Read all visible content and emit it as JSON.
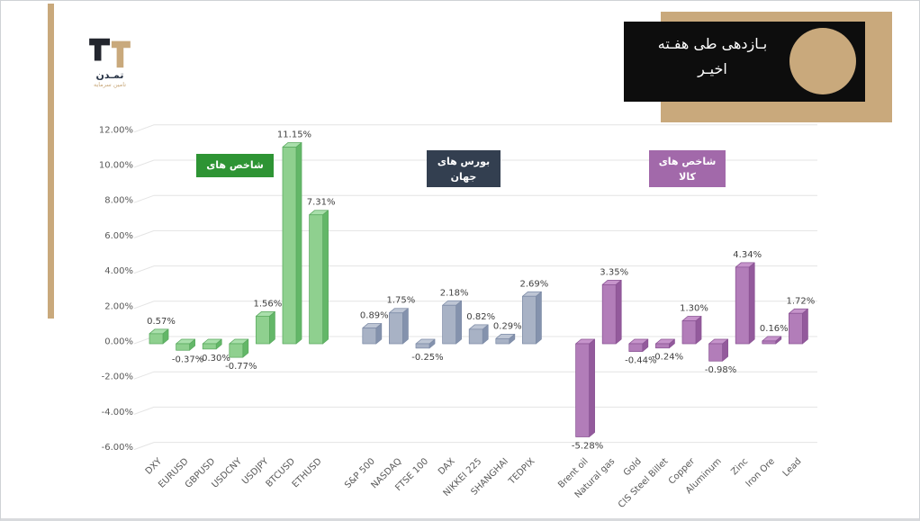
{
  "brand": {
    "name": "تمـدن",
    "subtitle": "تامین سرمایه"
  },
  "title": {
    "line1": "بـازدهی طی هفـته",
    "line2": "اخیـر"
  },
  "accent": {
    "tan": "#c9a97c",
    "black": "#0d0d0d"
  },
  "chart_data": {
    "type": "bar",
    "title": "بازدهی طی هفته اخیر",
    "xlabel": "",
    "ylabel": "",
    "ylim": [
      -6,
      12
    ],
    "ytick_step": 2,
    "yticks": [
      "12.00%",
      "10.00%",
      "8.00%",
      "6.00%",
      "4.00%",
      "2.00%",
      "0.00%",
      "-2.00%",
      "-4.00%",
      "-6.00%"
    ],
    "grid": true,
    "legend": false,
    "style": "3d-bars",
    "gridline_color": "#e4e4e4",
    "axis_label_color": "#595959",
    "value_label_color": "#404040",
    "groups": [
      {
        "id": "currency-indices",
        "label_line1": "شاخص های",
        "label_line2": "",
        "box_color": "#2e9434",
        "front": "#8fd08f",
        "side": "#63b768",
        "top": "#a9dfab",
        "stroke": "#5aa95f",
        "items": [
          {
            "name": "DXY",
            "value": 0.57,
            "label": "0.57%"
          },
          {
            "name": "EURUSD",
            "value": -0.37,
            "label": "-0.37%"
          },
          {
            "name": "GBPUSD",
            "value": -0.3,
            "label": "-0.30%"
          },
          {
            "name": "USDCNY",
            "value": -0.77,
            "label": "-0.77%"
          },
          {
            "name": "USDJPY",
            "value": 1.56,
            "label": "1.56%"
          },
          {
            "name": "BTCUSD",
            "value": 11.15,
            "label": "11.15%"
          },
          {
            "name": "ETHUSD",
            "value": 7.31,
            "label": "7.31%"
          }
        ]
      },
      {
        "id": "world-exchanges",
        "label_line1": "بورس های",
        "label_line2": "جهان",
        "box_color": "#333f50",
        "front": "#a8b2c5",
        "side": "#8492ad",
        "top": "#bdc5d4",
        "stroke": "#7d8ba6",
        "items": [
          {
            "name": "S&P 500",
            "value": 0.89,
            "label": "0.89%"
          },
          {
            "name": "NASDAQ",
            "value": 1.75,
            "label": "1.75%"
          },
          {
            "name": "FTSE 100",
            "value": -0.25,
            "label": "-0.25%"
          },
          {
            "name": "DAX",
            "value": 2.18,
            "label": "2.18%"
          },
          {
            "name": "NIKKEI 225",
            "value": 0.82,
            "label": "0.82%"
          },
          {
            "name": "SHANGHAI",
            "value": 0.29,
            "label": "0.29%"
          },
          {
            "name": "TEDPIX",
            "value": 2.69,
            "label": "2.69%"
          }
        ]
      },
      {
        "id": "commodity-indices",
        "label_line1": "شاخص های",
        "label_line2": "کالا",
        "box_color": "#a269aa",
        "front": "#b27db9",
        "side": "#935a9c",
        "top": "#c694cb",
        "stroke": "#8a5494",
        "items": [
          {
            "name": "Brent oil",
            "value": -5.28,
            "label": "-5.28%"
          },
          {
            "name": "Natural gas",
            "value": 3.35,
            "label": "3.35%"
          },
          {
            "name": "Gold",
            "value": -0.44,
            "label": "-0.44%"
          },
          {
            "name": "CIS Steel Billet",
            "value": -0.24,
            "label": "-0.24%"
          },
          {
            "name": "Copper",
            "value": 1.3,
            "label": "1.30%"
          },
          {
            "name": "Aluminum",
            "value": -0.98,
            "label": "-0.98%"
          },
          {
            "name": "Zinc",
            "value": 4.34,
            "label": "4.34%"
          },
          {
            "name": "Iron Ore",
            "value": 0.16,
            "label": "0.16%"
          },
          {
            "name": "Lead",
            "value": 1.72,
            "label": "1.72%"
          }
        ]
      }
    ]
  }
}
